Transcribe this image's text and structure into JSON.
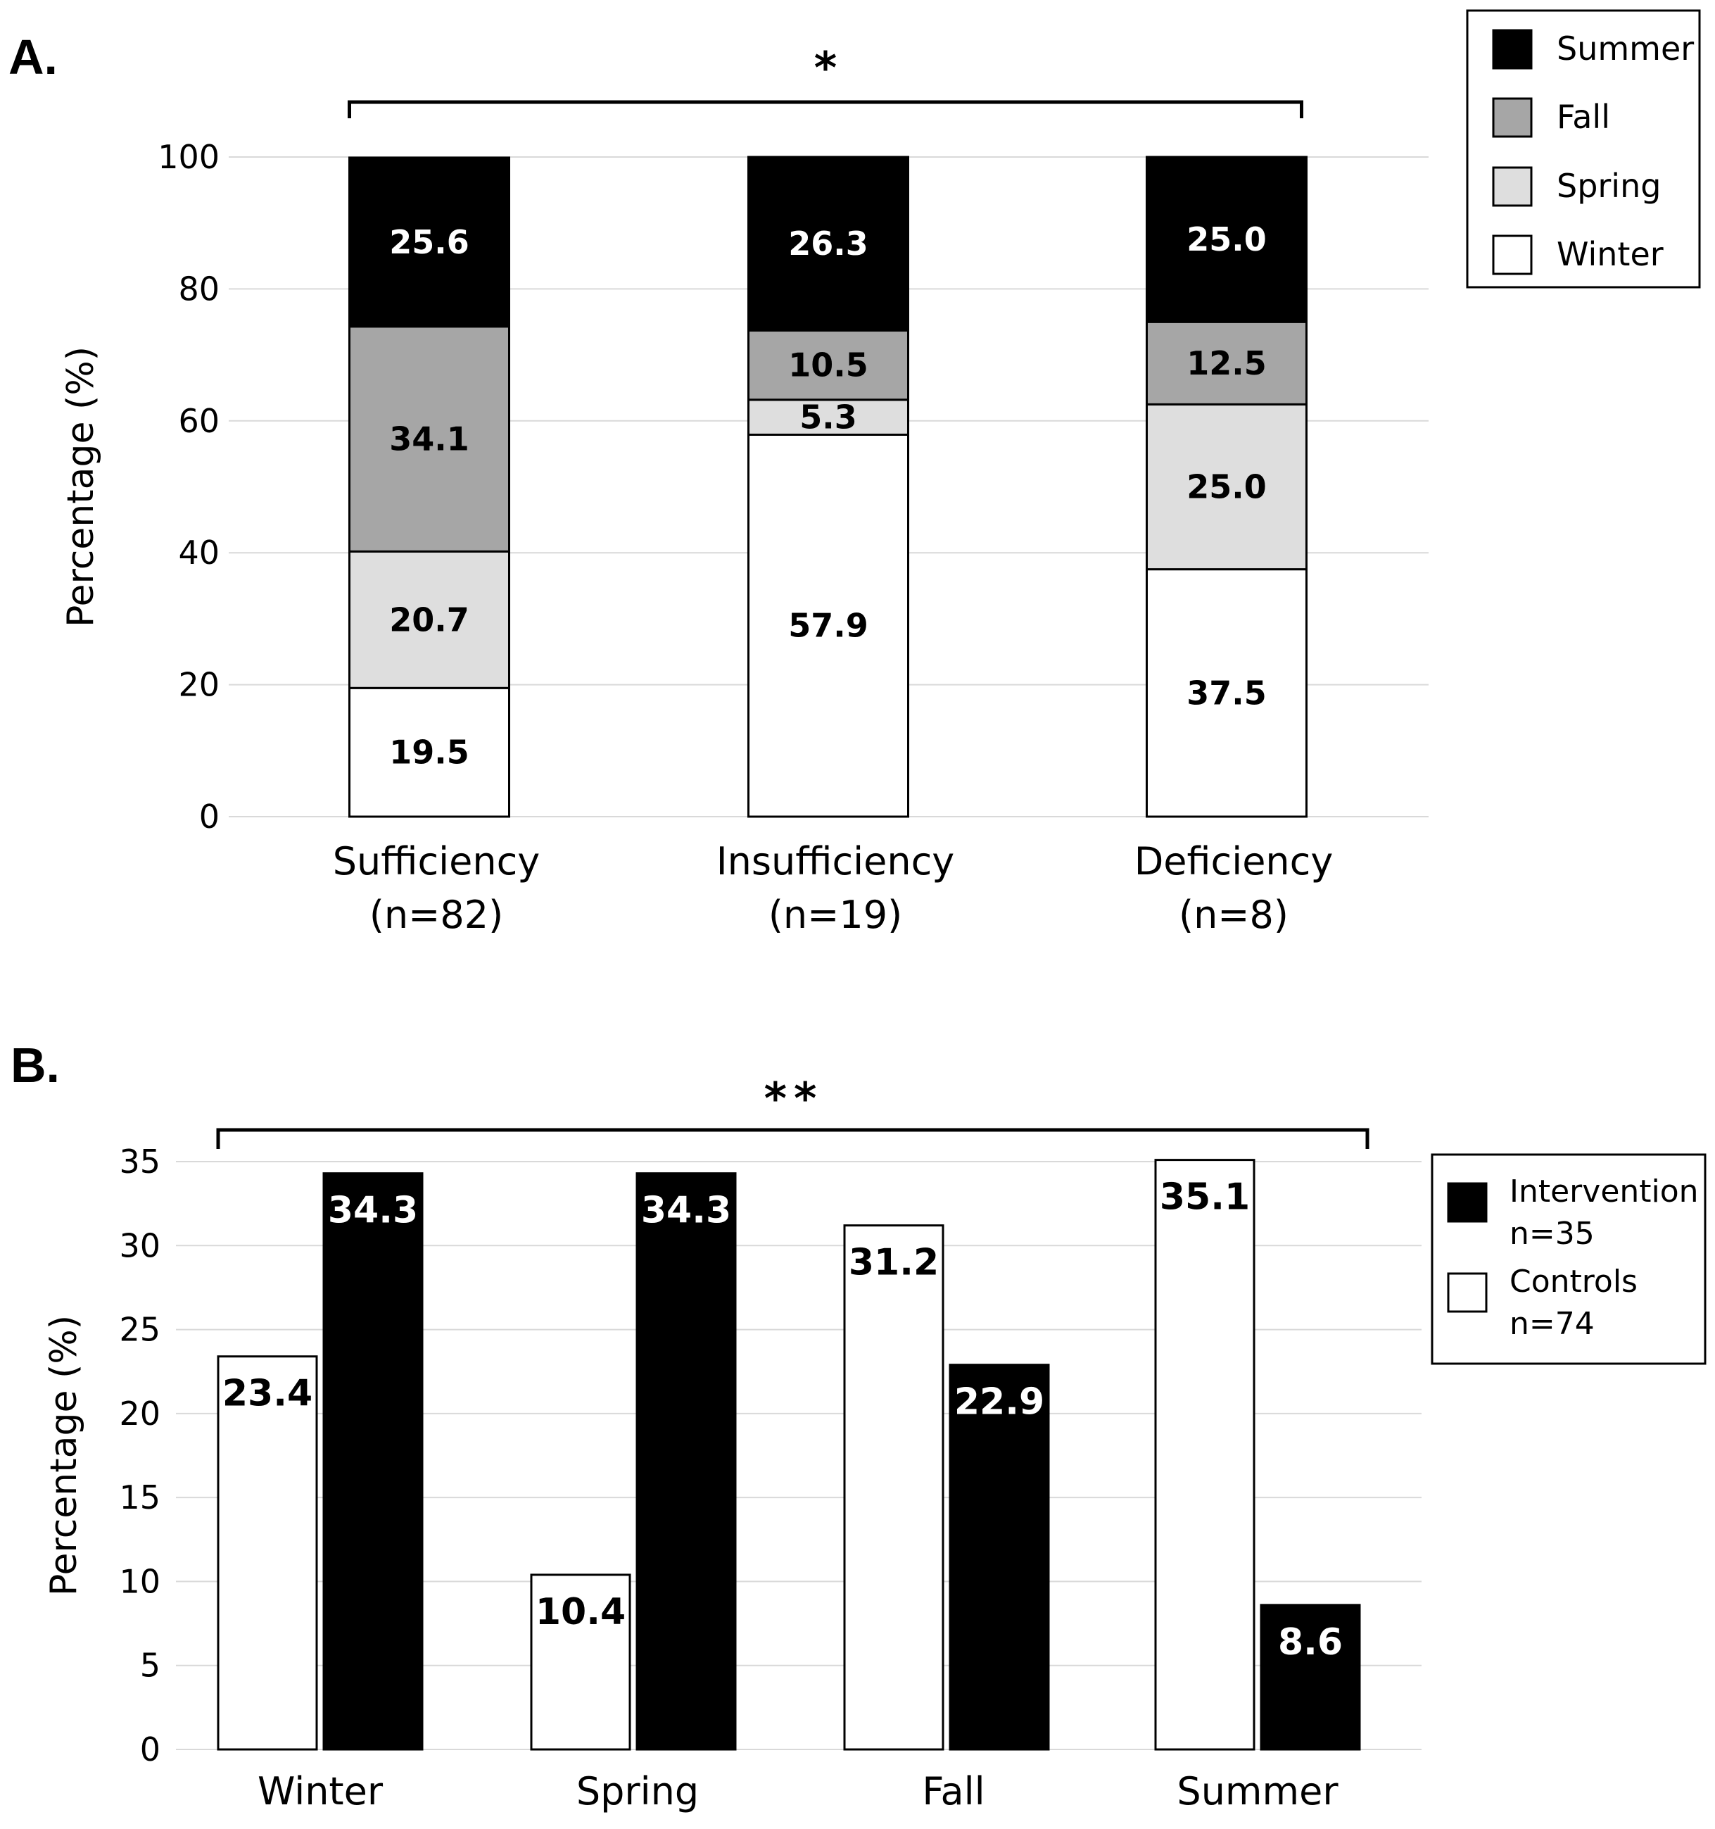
{
  "chart_data": [
    {
      "panel_label": "A.",
      "type": "bar",
      "stacked": true,
      "ylabel": "Percentage (%)",
      "ylim": [
        0,
        100
      ],
      "yticks": [
        0,
        20,
        40,
        60,
        80,
        100
      ],
      "grid": true,
      "significance": "*",
      "category_lines": [
        [
          "Sufficiency",
          "(n=82)"
        ],
        [
          "Insufficiency",
          "(n=19)"
        ],
        [
          "Deficiency",
          "(n=8)"
        ]
      ],
      "series": [
        {
          "name": "Winter",
          "color": "#ffffff",
          "label_color": "#000000",
          "values": [
            19.5,
            57.9,
            37.5
          ],
          "labels": [
            "19.5",
            "57.9",
            "37.5"
          ]
        },
        {
          "name": "Spring",
          "color": "#dedede",
          "label_color": "#000000",
          "values": [
            20.7,
            5.3,
            25.0
          ],
          "labels": [
            "20.7",
            "5.3",
            "25.0"
          ]
        },
        {
          "name": "Fall",
          "color": "#a6a6a6",
          "label_color": "#000000",
          "values": [
            34.1,
            10.5,
            12.5
          ],
          "labels": [
            "34.1",
            "10.5",
            "12.5"
          ]
        },
        {
          "name": "Summer",
          "color": "#000000",
          "label_color": "#ffffff",
          "values": [
            25.6,
            26.3,
            25.0
          ],
          "labels": [
            "25.6",
            "26.3",
            "25.0"
          ]
        }
      ],
      "legend_order": [
        "Summer",
        "Fall",
        "Spring",
        "Winter"
      ],
      "legend_position": "top-right"
    },
    {
      "panel_label": "B.",
      "type": "bar",
      "stacked": false,
      "ylabel": "Percentage (%)",
      "ylim": [
        0,
        35
      ],
      "yticks": [
        0,
        5,
        10,
        15,
        20,
        25,
        30,
        35
      ],
      "grid": true,
      "significance": "**",
      "categories": [
        "Winter",
        "Spring",
        "Fall",
        "Summer"
      ],
      "series": [
        {
          "name": "Controls",
          "legend_lines": [
            "Controls",
            "n=74"
          ],
          "color": "#ffffff",
          "label_color": "#000000",
          "values": [
            23.4,
            10.4,
            31.2,
            35.1
          ],
          "labels": [
            "23.4",
            "10.4",
            "31.2",
            "35.1"
          ]
        },
        {
          "name": "Intervention",
          "legend_lines": [
            "Intervention",
            "n=35"
          ],
          "color": "#000000",
          "label_color": "#ffffff",
          "values": [
            34.3,
            34.3,
            22.9,
            8.6
          ],
          "labels": [
            "34.3",
            "34.3",
            "22.9",
            "8.6"
          ]
        }
      ],
      "legend_order": [
        "Intervention",
        "Controls"
      ],
      "legend_position": "right"
    }
  ]
}
